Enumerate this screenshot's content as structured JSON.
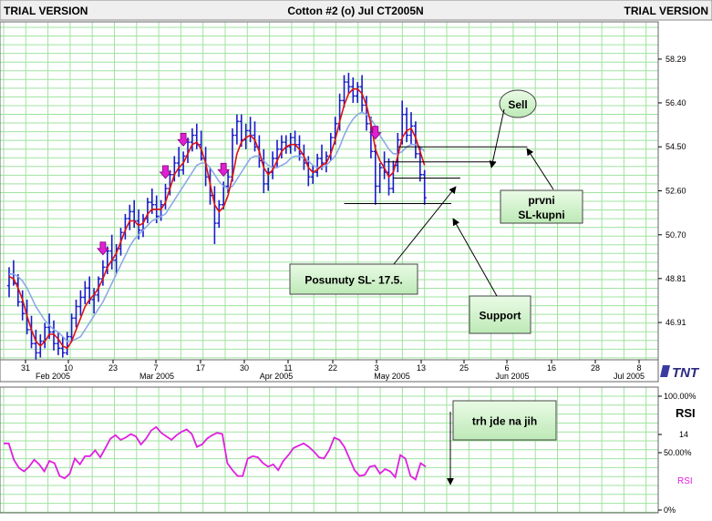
{
  "header": {
    "left": "TRIAL VERSION",
    "center": "Cotton #2 (o) Jul CT2005N",
    "right": "TRIAL VERSION"
  },
  "logo": "TNT",
  "colors": {
    "background": "#ffffff",
    "grid": "#9fe39f",
    "bars": "#1a1acc",
    "ma_fast": "#e01010",
    "ma_slow": "#8ea8e8",
    "rsi": "#e020e0",
    "arrow": "#e020d0",
    "note_fill": "#ccf5c6"
  },
  "chart_data": [
    {
      "type": "ohlc",
      "title": "Cotton #2 (o) Jul CT2005N",
      "y_ticks": [
        "58.29",
        "56.40",
        "54.50",
        "52.60",
        "50.70",
        "48.81",
        "46.91"
      ],
      "ylim": [
        45.3,
        59.9
      ],
      "x_ticks": [
        "31",
        "10",
        "23",
        "7",
        "17",
        "30",
        "11",
        "22",
        "3",
        "13",
        "25",
        "6",
        "16",
        "28",
        "8"
      ],
      "month_labels": [
        "Feb 2005",
        "Mar 2005",
        "Apr 2005",
        "May 2005",
        "Jun 2005",
        "Jul 2005"
      ],
      "bar_color": "#1a1acc",
      "bars": [
        [
          48.5,
          49.3,
          48.0,
          49.0
        ],
        [
          49.0,
          49.6,
          48.5,
          48.6
        ],
        [
          48.6,
          49.0,
          47.6,
          47.8
        ],
        [
          47.8,
          48.3,
          47.0,
          47.3
        ],
        [
          47.3,
          47.9,
          46.4,
          46.6
        ],
        [
          46.6,
          47.2,
          45.8,
          46.0
        ],
        [
          46.0,
          46.6,
          45.3,
          45.6
        ],
        [
          45.6,
          46.4,
          45.4,
          46.1
        ],
        [
          46.1,
          46.9,
          45.8,
          46.7
        ],
        [
          46.7,
          47.3,
          46.2,
          46.5
        ],
        [
          46.5,
          47.0,
          45.7,
          46.0
        ],
        [
          46.0,
          46.5,
          45.5,
          45.8
        ],
        [
          45.8,
          46.3,
          45.4,
          45.6
        ],
        [
          45.6,
          46.5,
          45.5,
          46.3
        ],
        [
          46.3,
          47.3,
          46.1,
          47.1
        ],
        [
          47.1,
          47.9,
          46.7,
          47.6
        ],
        [
          47.6,
          48.3,
          47.2,
          48.0
        ],
        [
          48.0,
          48.7,
          47.7,
          48.4
        ],
        [
          48.4,
          48.9,
          47.7,
          47.9
        ],
        [
          47.9,
          48.4,
          47.3,
          48.1
        ],
        [
          48.1,
          48.9,
          47.8,
          48.8
        ],
        [
          48.8,
          49.6,
          48.5,
          49.3
        ],
        [
          49.3,
          50.2,
          49.0,
          50.0
        ],
        [
          50.0,
          50.7,
          49.2,
          49.6
        ],
        [
          49.6,
          50.3,
          49.0,
          50.1
        ],
        [
          50.1,
          51.0,
          49.8,
          50.8
        ],
        [
          50.8,
          51.6,
          50.5,
          51.4
        ],
        [
          51.4,
          52.0,
          50.9,
          51.7
        ],
        [
          51.7,
          52.2,
          51.0,
          51.3
        ],
        [
          51.3,
          51.8,
          50.5,
          50.9
        ],
        [
          50.9,
          51.6,
          50.6,
          51.4
        ],
        [
          51.4,
          52.3,
          51.2,
          52.1
        ],
        [
          52.1,
          52.7,
          51.6,
          52.0
        ],
        [
          52.0,
          52.4,
          51.2,
          51.5
        ],
        [
          51.5,
          52.2,
          51.3,
          52.0
        ],
        [
          52.0,
          52.9,
          51.8,
          52.7
        ],
        [
          52.7,
          53.5,
          52.4,
          53.3
        ],
        [
          53.3,
          54.1,
          53.0,
          53.8
        ],
        [
          53.8,
          54.5,
          53.2,
          53.5
        ],
        [
          53.5,
          54.3,
          53.3,
          54.1
        ],
        [
          54.1,
          54.9,
          53.8,
          54.7
        ],
        [
          54.7,
          55.3,
          54.3,
          55.0
        ],
        [
          55.0,
          55.5,
          54.4,
          54.6
        ],
        [
          54.6,
          55.2,
          53.9,
          54.0
        ],
        [
          54.0,
          54.5,
          52.8,
          53.2
        ],
        [
          53.2,
          53.6,
          52.0,
          52.4
        ],
        [
          52.4,
          52.8,
          50.3,
          51.2
        ],
        [
          51.2,
          52.2,
          51.0,
          52.0
        ],
        [
          52.0,
          53.0,
          51.8,
          52.8
        ],
        [
          52.8,
          53.5,
          52.5,
          53.2
        ],
        [
          53.2,
          55.3,
          53.0,
          55.0
        ],
        [
          55.0,
          55.9,
          54.6,
          55.6
        ],
        [
          55.6,
          55.9,
          54.5,
          54.8
        ],
        [
          54.8,
          55.5,
          54.4,
          55.2
        ],
        [
          55.2,
          55.8,
          54.7,
          55.0
        ],
        [
          55.0,
          55.6,
          54.3,
          54.5
        ],
        [
          54.5,
          55.0,
          53.6,
          53.9
        ],
        [
          53.9,
          54.4,
          52.5,
          52.9
        ],
        [
          52.9,
          53.6,
          52.6,
          53.4
        ],
        [
          53.4,
          54.3,
          53.1,
          54.0
        ],
        [
          54.0,
          54.8,
          53.6,
          54.4
        ],
        [
          54.4,
          55.0,
          54.0,
          54.7
        ],
        [
          54.7,
          55.0,
          54.2,
          54.5
        ],
        [
          54.5,
          55.1,
          54.2,
          54.9
        ],
        [
          54.9,
          55.2,
          54.3,
          54.6
        ],
        [
          54.6,
          55.0,
          53.9,
          54.2
        ],
        [
          54.2,
          54.6,
          53.5,
          53.8
        ],
        [
          53.8,
          54.1,
          52.8,
          53.2
        ],
        [
          53.2,
          53.7,
          52.9,
          53.4
        ],
        [
          53.4,
          54.2,
          53.2,
          54.0
        ],
        [
          54.0,
          54.6,
          53.5,
          53.8
        ],
        [
          53.8,
          54.3,
          53.4,
          54.1
        ],
        [
          54.1,
          55.1,
          53.9,
          54.9
        ],
        [
          54.9,
          55.8,
          54.6,
          55.5
        ],
        [
          55.5,
          56.8,
          55.2,
          56.5
        ],
        [
          56.5,
          57.6,
          56.2,
          57.3
        ],
        [
          57.3,
          57.7,
          56.8,
          57.1
        ],
        [
          57.1,
          57.5,
          56.4,
          56.7
        ],
        [
          56.7,
          57.3,
          56.4,
          57.1
        ],
        [
          57.1,
          57.6,
          56.0,
          56.3
        ],
        [
          56.3,
          56.7,
          55.2,
          55.5
        ],
        [
          55.5,
          55.8,
          54.0,
          54.3
        ],
        [
          54.3,
          54.6,
          52.0,
          52.8
        ],
        [
          52.8,
          53.8,
          52.5,
          53.6
        ],
        [
          53.6,
          54.3,
          53.1,
          53.4
        ],
        [
          53.4,
          54.0,
          52.4,
          52.7
        ],
        [
          52.7,
          53.9,
          52.5,
          53.7
        ],
        [
          53.7,
          55.1,
          53.4,
          54.8
        ],
        [
          54.8,
          56.5,
          54.6,
          55.9
        ],
        [
          55.9,
          56.2,
          54.7,
          55.0
        ],
        [
          55.0,
          56.0,
          54.6,
          55.4
        ],
        [
          55.4,
          55.6,
          54.0,
          54.2
        ],
        [
          54.2,
          54.5,
          53.0,
          53.3
        ],
        [
          53.3,
          53.5,
          52.0,
          52.3
        ]
      ],
      "series": [
        {
          "name": "",
          "color": "#e01010",
          "values": [
            48.9,
            48.8,
            48.4,
            47.9,
            47.2,
            46.6,
            46.1,
            45.9,
            46.1,
            46.4,
            46.4,
            46.2,
            45.9,
            45.8,
            46.1,
            46.6,
            47.1,
            47.6,
            47.9,
            48.1,
            48.4,
            48.8,
            49.3,
            49.6,
            49.9,
            50.4,
            50.9,
            51.3,
            51.3,
            51.1,
            51.2,
            51.6,
            51.8,
            51.8,
            51.8,
            52.1,
            52.7,
            53.3,
            53.6,
            53.8,
            54.2,
            54.6,
            54.7,
            54.4,
            53.8,
            52.9,
            52.0,
            51.7,
            51.9,
            52.4,
            53.2,
            54.2,
            54.7,
            54.9,
            55.0,
            54.8,
            54.3,
            53.6,
            53.3,
            53.5,
            53.9,
            54.3,
            54.5,
            54.6,
            54.6,
            54.4,
            54.1,
            53.6,
            53.4,
            53.5,
            53.7,
            53.8,
            54.2,
            54.8,
            55.6,
            56.3,
            56.8,
            57.0,
            57.0,
            56.8,
            56.3,
            55.5,
            54.4,
            53.9,
            53.6,
            53.2,
            53.4,
            54.1,
            54.9,
            55.2,
            55.3,
            54.9,
            54.3,
            53.7
          ]
        },
        {
          "name": "",
          "color": "#8ea8e8",
          "values": [
            49.0,
            49.0,
            48.9,
            48.7,
            48.4,
            48.0,
            47.6,
            47.3,
            47.0,
            46.8,
            46.6,
            46.5,
            46.3,
            46.1,
            46.1,
            46.2,
            46.3,
            46.6,
            46.9,
            47.2,
            47.5,
            47.8,
            48.2,
            48.6,
            49.0,
            49.4,
            49.8,
            50.2,
            50.5,
            50.7,
            50.9,
            51.1,
            51.3,
            51.4,
            51.5,
            51.6,
            51.9,
            52.2,
            52.5,
            52.8,
            53.1,
            53.4,
            53.7,
            53.8,
            53.8,
            53.6,
            53.3,
            53.0,
            52.8,
            52.7,
            52.8,
            53.1,
            53.4,
            53.7,
            54.0,
            54.1,
            54.1,
            53.9,
            53.7,
            53.6,
            53.6,
            53.7,
            53.8,
            54.0,
            54.1,
            54.1,
            54.0,
            53.9,
            53.7,
            53.6,
            53.6,
            53.7,
            53.9,
            54.1,
            54.5,
            55.0,
            55.4,
            55.7,
            55.9,
            56.0,
            55.9,
            55.7,
            55.4,
            55.0,
            54.7,
            54.4,
            54.2,
            54.2,
            54.3,
            54.5,
            54.6,
            54.6,
            54.5,
            54.3
          ]
        }
      ],
      "buy_arrows_at_bar": [
        21,
        35,
        39,
        48,
        82
      ],
      "horizontal_levels": [
        {
          "price": 54.5,
          "from_bar": 87,
          "to_bar": 116
        },
        {
          "price": 53.85,
          "from_bar": 84,
          "to_bar": 109
        },
        {
          "price": 53.15,
          "from_bar": 86,
          "to_bar": 101
        },
        {
          "price": 52.05,
          "from_bar": 75,
          "to_bar": 99
        }
      ],
      "annotations": [
        {
          "id": "sell",
          "text": "Sell"
        },
        {
          "id": "prvni",
          "text": "prvni\nSL-kupni"
        },
        {
          "id": "posunuty",
          "text": "Posunuty SL- 17.5."
        },
        {
          "id": "support",
          "text": "Support"
        }
      ]
    },
    {
      "type": "line",
      "ylabel": "RSI",
      "y_ticks": [
        "100.00%",
        "14",
        "50.00%",
        "0%"
      ],
      "legend": "RSI",
      "ylim": [
        0,
        100
      ],
      "series": [
        {
          "name": "RSI",
          "color": "#e020e0",
          "values": [
            58,
            58,
            44,
            37,
            34,
            38,
            44,
            40,
            34,
            43,
            41,
            30,
            28,
            32,
            45,
            40,
            47,
            47,
            52,
            46,
            54,
            62,
            65,
            61,
            63,
            66,
            64,
            57,
            62,
            69,
            72,
            67,
            64,
            61,
            65,
            68,
            70,
            66,
            55,
            57,
            62,
            65,
            67,
            66,
            41,
            35,
            30,
            30,
            45,
            47,
            46,
            41,
            38,
            40,
            35,
            43,
            48,
            54,
            56,
            58,
            55,
            51,
            46,
            45,
            52,
            63,
            61,
            55,
            45,
            35,
            30,
            31,
            38,
            39,
            32,
            36,
            34,
            29,
            48,
            45,
            30,
            27,
            41,
            38
          ]
        }
      ],
      "annotations": [
        {
          "id": "trh",
          "text": "trh jde na jih"
        }
      ]
    }
  ]
}
